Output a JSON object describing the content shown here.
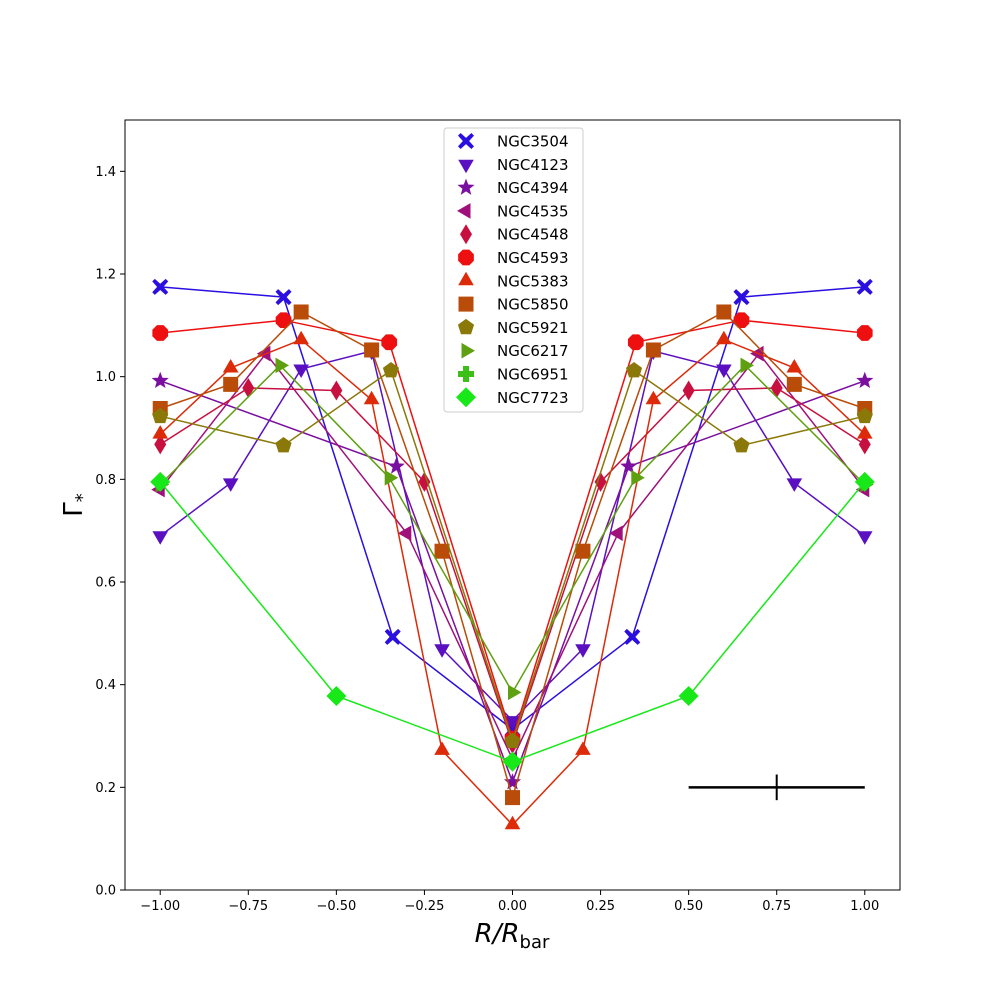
{
  "chart_data": {
    "type": "line",
    "title": "",
    "xlabel_main": "R/R",
    "xlabel_sub": "bar",
    "ylabel_main": "Γ",
    "ylabel_sub": "*",
    "xlim": [
      -1.1,
      1.1
    ],
    "ylim": [
      0.0,
      1.5
    ],
    "x_ticks": [
      -1.0,
      -0.75,
      -0.5,
      -0.25,
      0.0,
      0.25,
      0.5,
      0.75,
      1.0
    ],
    "x_tick_labels": [
      "−1.00",
      "−0.75",
      "−0.50",
      "−0.25",
      "0.00",
      "0.25",
      "0.50",
      "0.75",
      "1.00"
    ],
    "y_ticks": [
      0.0,
      0.2,
      0.4,
      0.6,
      0.8,
      1.0,
      1.2,
      1.4
    ],
    "y_tick_labels": [
      "0.0",
      "0.2",
      "0.4",
      "0.6",
      "0.8",
      "1.0",
      "1.2",
      "1.4"
    ],
    "grid": false,
    "legend_position": "top-center",
    "error_bar": {
      "x": 0.75,
      "y": 0.2,
      "xerr": 0.25,
      "yerr": 0.025
    },
    "series": [
      {
        "name": "NGC3504",
        "color": "#2a0fe0",
        "marker": "X",
        "x": [
          -1.0,
          -0.65,
          -0.34,
          0.0,
          0.34,
          0.65,
          1.0
        ],
        "y": [
          1.175,
          1.155,
          0.493,
          0.313,
          0.493,
          1.155,
          1.175
        ]
      },
      {
        "name": "NGC4123",
        "color": "#5a10c0",
        "marker": "tri-down",
        "x": [
          -1.0,
          -0.8,
          -0.6,
          -0.4,
          -0.2,
          0.0,
          0.2,
          0.4,
          0.6,
          0.8,
          1.0
        ],
        "y": [
          0.69,
          0.793,
          1.015,
          1.05,
          0.47,
          0.33,
          0.47,
          1.05,
          1.015,
          0.793,
          0.69
        ]
      },
      {
        "name": "NGC4394",
        "color": "#7a0fa0",
        "marker": "star",
        "x": [
          -1.0,
          -0.33,
          0.0,
          0.33,
          1.0
        ],
        "y": [
          0.992,
          0.825,
          0.21,
          0.825,
          0.992
        ]
      },
      {
        "name": "NGC4535",
        "color": "#a0107a",
        "marker": "tri-left",
        "x": [
          -1.0,
          -0.7,
          -0.3,
          0.0,
          0.3,
          0.7,
          1.0
        ],
        "y": [
          0.78,
          1.045,
          0.695,
          0.255,
          0.695,
          1.045,
          0.78
        ]
      },
      {
        "name": "NGC4548",
        "color": "#c81040",
        "marker": "diamond-thin",
        "x": [
          -1.0,
          -0.75,
          -0.5,
          -0.25,
          0.0,
          0.25,
          0.5,
          0.75,
          1.0
        ],
        "y": [
          0.868,
          0.978,
          0.973,
          0.795,
          0.285,
          0.795,
          0.973,
          0.978,
          0.868
        ]
      },
      {
        "name": "NGC4593",
        "color": "#ee1010",
        "marker": "octagon",
        "x": [
          -1.0,
          -0.65,
          -0.35,
          0.0,
          0.35,
          0.65,
          1.0
        ],
        "y": [
          1.085,
          1.11,
          1.067,
          0.295,
          1.067,
          1.11,
          1.085
        ]
      },
      {
        "name": "NGC5383",
        "color": "#dd2a08",
        "marker": "tri-up",
        "x": [
          -1.0,
          -0.8,
          -0.6,
          -0.4,
          -0.2,
          0.0,
          0.2,
          0.4,
          0.6,
          0.8,
          1.0
        ],
        "y": [
          0.888,
          1.017,
          1.072,
          0.955,
          0.272,
          0.127,
          0.272,
          0.955,
          1.072,
          1.017,
          0.888
        ]
      },
      {
        "name": "NGC5850",
        "color": "#b84c08",
        "marker": "square",
        "x": [
          -1.0,
          -0.8,
          -0.6,
          -0.4,
          -0.2,
          0.0,
          0.2,
          0.4,
          0.6,
          0.8,
          1.0
        ],
        "y": [
          0.938,
          0.985,
          1.126,
          1.052,
          0.66,
          0.18,
          0.66,
          1.052,
          1.126,
          0.985,
          0.938
        ]
      },
      {
        "name": "NGC5921",
        "color": "#8a7808",
        "marker": "pentagon",
        "x": [
          -1.0,
          -0.65,
          -0.345,
          0.0,
          0.345,
          0.65,
          1.0
        ],
        "y": [
          0.923,
          0.866,
          1.012,
          0.29,
          1.012,
          0.866,
          0.923
        ]
      },
      {
        "name": "NGC6217",
        "color": "#5ea010",
        "marker": "tri-right",
        "x": [
          -1.0,
          -0.66,
          -0.35,
          0.0,
          0.35,
          0.66,
          1.0
        ],
        "y": [
          0.79,
          1.022,
          0.803,
          0.385,
          0.803,
          1.022,
          0.79
        ]
      },
      {
        "name": "NGC6951",
        "color": "#3cc018",
        "marker": "plus",
        "x": [],
        "y": []
      },
      {
        "name": "NGC7723",
        "color": "#18e818",
        "marker": "diamond",
        "x": [
          -1.0,
          -0.5,
          0.0,
          0.5,
          1.0
        ],
        "y": [
          0.795,
          0.378,
          0.25,
          0.378,
          0.795
        ]
      }
    ]
  }
}
